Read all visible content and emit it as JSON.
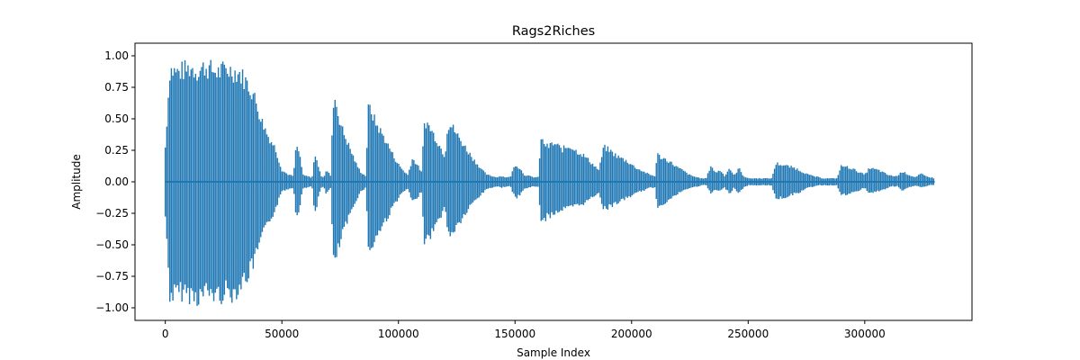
{
  "chart_data": {
    "type": "line",
    "title": "Rags2Riches",
    "xlabel": "Sample Index",
    "ylabel": "Amplitude",
    "xlim": [
      -13000,
      346000
    ],
    "ylim": [
      -1.1,
      1.1
    ],
    "xticks": [
      0,
      50000,
      100000,
      150000,
      200000,
      250000,
      300000
    ],
    "xtick_labels": [
      "0",
      "50000",
      "100000",
      "150000",
      "200000",
      "250000",
      "300000"
    ],
    "yticks": [
      -1.0,
      -0.75,
      -0.5,
      -0.25,
      0.0,
      0.25,
      0.5,
      0.75,
      1.0
    ],
    "ytick_labels": [
      "−1.00",
      "−0.75",
      "−0.50",
      "−0.25",
      "0.00",
      "0.25",
      "0.50",
      "0.75",
      "1.00"
    ],
    "grid": false,
    "legend": "none",
    "color": "#1f77b4",
    "series": [
      {
        "x": [
          0,
          2000,
          5000,
          8000,
          11000,
          14000,
          17000,
          20000,
          23000,
          26000,
          29000,
          32000,
          35000,
          38000,
          41000,
          44000,
          47000,
          50000,
          53000,
          55000,
          56000,
          57000,
          58000,
          59000,
          60000,
          61000,
          62000,
          63000,
          64000,
          65000,
          66000,
          67000,
          68000,
          69000,
          70000,
          71000,
          72000,
          73000,
          74000,
          76000,
          78000,
          80000,
          82000,
          84000,
          86000,
          87000,
          88000,
          89000,
          90000,
          92000,
          94000,
          96000,
          98000,
          100000,
          102000,
          104000,
          106000,
          108000,
          110000,
          111000,
          112000,
          114000,
          116000,
          118000,
          120000,
          121000,
          122000,
          124000,
          126000,
          128000,
          130000,
          132000,
          134000,
          136000,
          138000,
          140000,
          142000,
          144000,
          146000,
          148000,
          150000,
          152000,
          154000,
          156000,
          158000,
          160000,
          161000,
          162000,
          164000,
          166000,
          168000,
          170000,
          172000,
          174000,
          176000,
          178000,
          180000,
          182000,
          184000,
          186000,
          188000,
          190000,
          192000,
          194000,
          196000,
          198000,
          200000,
          202000,
          204000,
          206000,
          208000,
          210000,
          211000,
          212000,
          214000,
          216000,
          218000,
          220000,
          222000,
          224000,
          226000,
          228000,
          230000,
          232000,
          234000,
          236000,
          238000,
          240000,
          242000,
          244000,
          246000,
          248000,
          250000,
          252000,
          254000,
          256000,
          258000,
          260000,
          262000,
          264000,
          266000,
          268000,
          270000,
          272000,
          274000,
          276000,
          278000,
          280000,
          282000,
          284000,
          286000,
          288000,
          290000,
          292000,
          294000,
          296000,
          298000,
          300000,
          302000,
          304000,
          306000,
          308000,
          310000,
          312000,
          314000,
          316000,
          318000,
          320000,
          322000,
          324000,
          326000,
          328000,
          330000
        ],
        "upper": [
          0.3,
          0.98,
          0.95,
          0.97,
          0.99,
          0.96,
          1.0,
          0.97,
          0.95,
          0.98,
          0.96,
          0.94,
          0.86,
          0.75,
          0.55,
          0.4,
          0.3,
          0.1,
          0.06,
          0.05,
          0.3,
          0.28,
          0.2,
          0.06,
          0.05,
          0.05,
          0.04,
          0.04,
          0.22,
          0.2,
          0.1,
          0.05,
          0.04,
          0.1,
          0.08,
          0.05,
          0.7,
          0.72,
          0.6,
          0.45,
          0.35,
          0.25,
          0.15,
          0.08,
          0.05,
          0.62,
          0.64,
          0.58,
          0.52,
          0.45,
          0.38,
          0.3,
          0.22,
          0.15,
          0.1,
          0.06,
          0.2,
          0.15,
          0.08,
          0.5,
          0.52,
          0.45,
          0.38,
          0.3,
          0.22,
          0.48,
          0.5,
          0.45,
          0.38,
          0.32,
          0.26,
          0.2,
          0.15,
          0.1,
          0.06,
          0.05,
          0.04,
          0.05,
          0.04,
          0.04,
          0.15,
          0.12,
          0.06,
          0.05,
          0.04,
          0.04,
          0.36,
          0.35,
          0.3,
          0.33,
          0.32,
          0.28,
          0.3,
          0.31,
          0.27,
          0.25,
          0.22,
          0.18,
          0.14,
          0.1,
          0.3,
          0.28,
          0.25,
          0.22,
          0.2,
          0.18,
          0.15,
          0.12,
          0.1,
          0.08,
          0.06,
          0.05,
          0.24,
          0.22,
          0.2,
          0.18,
          0.15,
          0.12,
          0.1,
          0.07,
          0.05,
          0.04,
          0.03,
          0.03,
          0.14,
          0.08,
          0.1,
          0.05,
          0.12,
          0.05,
          0.12,
          0.05,
          0.03,
          0.03,
          0.03,
          0.03,
          0.03,
          0.03,
          0.16,
          0.15,
          0.14,
          0.13,
          0.12,
          0.1,
          0.08,
          0.06,
          0.05,
          0.04,
          0.03,
          0.03,
          0.03,
          0.03,
          0.14,
          0.13,
          0.12,
          0.1,
          0.08,
          0.06,
          0.12,
          0.11,
          0.1,
          0.08,
          0.06,
          0.05,
          0.05,
          0.09,
          0.07,
          0.05,
          0.04,
          0.07,
          0.05,
          0.04,
          0.03
        ],
        "lower": [
          -0.3,
          -0.99,
          -0.97,
          -0.95,
          -0.98,
          -1.0,
          -0.96,
          -0.97,
          -0.99,
          -0.95,
          -0.97,
          -0.9,
          -0.82,
          -0.7,
          -0.5,
          -0.36,
          -0.25,
          -0.08,
          -0.06,
          -0.05,
          -0.28,
          -0.26,
          -0.18,
          -0.06,
          -0.05,
          -0.05,
          -0.04,
          -0.04,
          -0.3,
          -0.22,
          -0.1,
          -0.05,
          -0.04,
          -0.1,
          -0.08,
          -0.05,
          -0.68,
          -0.7,
          -0.6,
          -0.45,
          -0.35,
          -0.25,
          -0.15,
          -0.08,
          -0.05,
          -0.55,
          -0.58,
          -0.55,
          -0.5,
          -0.42,
          -0.35,
          -0.28,
          -0.2,
          -0.14,
          -0.09,
          -0.06,
          -0.18,
          -0.14,
          -0.08,
          -0.5,
          -0.52,
          -0.45,
          -0.38,
          -0.3,
          -0.22,
          -0.43,
          -0.45,
          -0.42,
          -0.36,
          -0.3,
          -0.24,
          -0.18,
          -0.14,
          -0.1,
          -0.06,
          -0.05,
          -0.04,
          -0.05,
          -0.04,
          -0.04,
          -0.14,
          -0.12,
          -0.06,
          -0.05,
          -0.04,
          -0.04,
          -0.36,
          -0.34,
          -0.3,
          -0.28,
          -0.26,
          -0.24,
          -0.23,
          -0.22,
          -0.21,
          -0.2,
          -0.18,
          -0.15,
          -0.12,
          -0.09,
          -0.24,
          -0.22,
          -0.2,
          -0.18,
          -0.16,
          -0.14,
          -0.12,
          -0.1,
          -0.08,
          -0.07,
          -0.05,
          -0.05,
          -0.22,
          -0.2,
          -0.18,
          -0.16,
          -0.13,
          -0.1,
          -0.08,
          -0.06,
          -0.05,
          -0.04,
          -0.03,
          -0.03,
          -0.1,
          -0.07,
          -0.08,
          -0.05,
          -0.1,
          -0.05,
          -0.1,
          -0.05,
          -0.03,
          -0.03,
          -0.03,
          -0.03,
          -0.03,
          -0.03,
          -0.15,
          -0.14,
          -0.13,
          -0.12,
          -0.1,
          -0.09,
          -0.07,
          -0.05,
          -0.04,
          -0.03,
          -0.03,
          -0.03,
          -0.03,
          -0.03,
          -0.12,
          -0.11,
          -0.1,
          -0.09,
          -0.07,
          -0.05,
          -0.1,
          -0.09,
          -0.08,
          -0.07,
          -0.05,
          -0.04,
          -0.04,
          -0.08,
          -0.06,
          -0.04,
          -0.03,
          -0.05,
          -0.04,
          -0.03,
          -0.03
        ]
      }
    ]
  }
}
